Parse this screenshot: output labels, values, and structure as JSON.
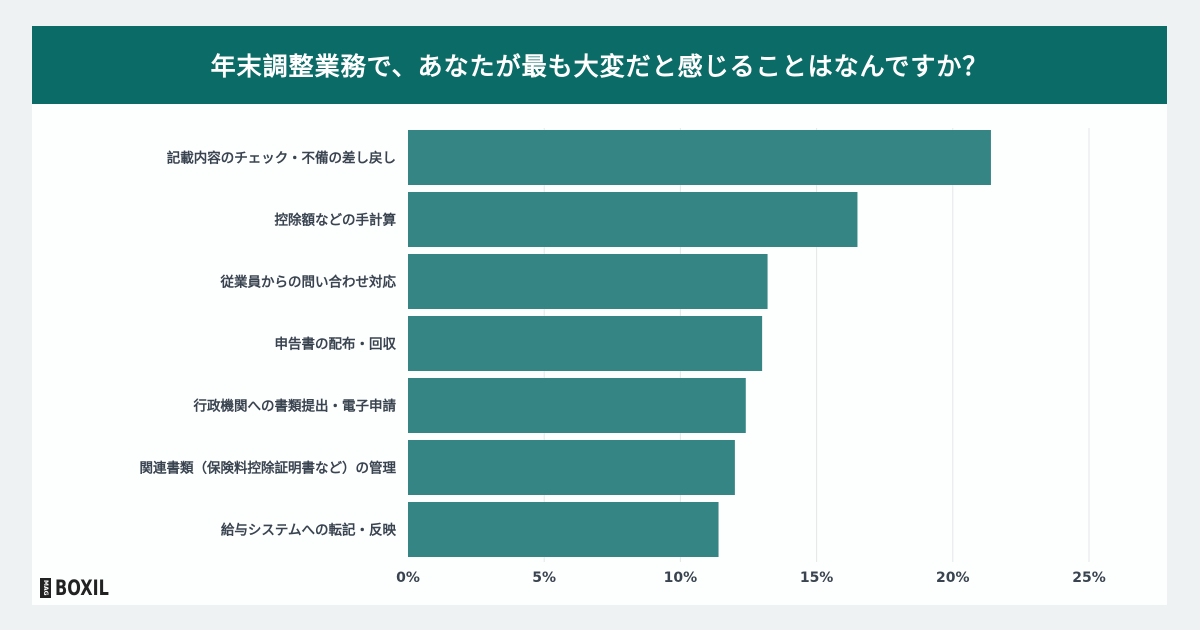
{
  "header": {
    "title": "年末調整業務で、あなたが最も大変だと感じることはなんですか？"
  },
  "logo": {
    "mark": "MAG",
    "text": "BOXIL"
  },
  "chart_data": {
    "type": "bar",
    "orientation": "horizontal",
    "categories": [
      "記載内容のチェック・不備の差し戻し",
      "控除額などの手計算",
      "従業員からの問い合わせ対応",
      "申告書の配布・回収",
      "行政機関への書類提出・電子申請",
      "関連書類（保険料控除証明書など）の管理",
      "給与システムへの転記・反映"
    ],
    "values": [
      21.4,
      16.5,
      13.2,
      13.0,
      12.4,
      12.0,
      11.4
    ],
    "xlim": [
      0,
      25
    ],
    "xticks": [
      "0%",
      "5%",
      "10%",
      "15%",
      "20%",
      "25%"
    ],
    "grid": true,
    "bar_color": "#348584"
  }
}
